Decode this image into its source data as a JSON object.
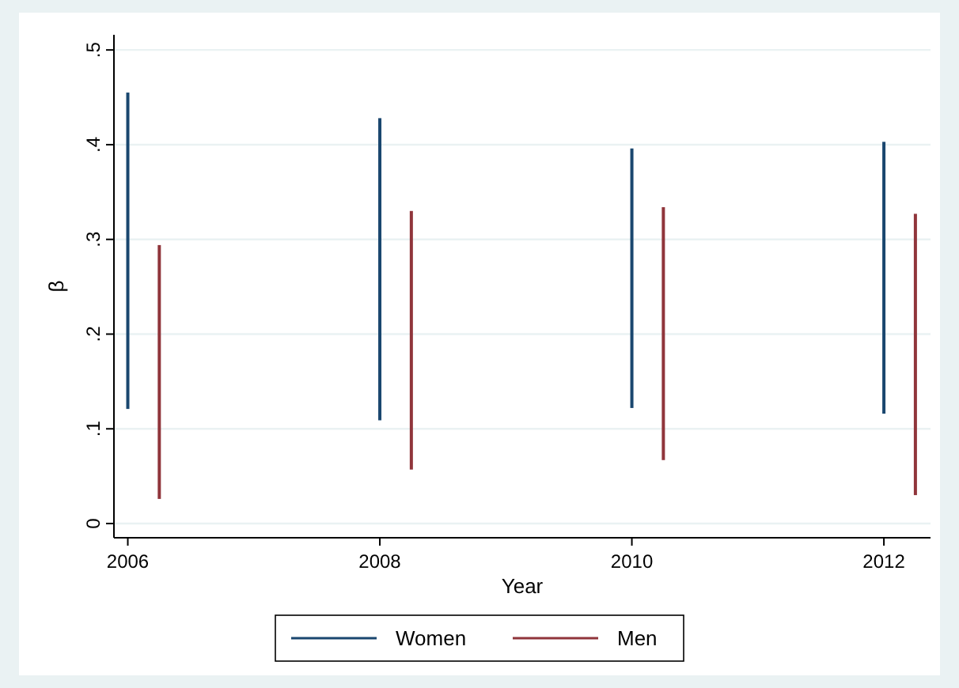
{
  "chart_data": {
    "type": "bar",
    "xlabel": "Year",
    "ylabel": "β",
    "xlim": [
      2005.89,
      2012.37
    ],
    "xticks": [
      2006,
      2008,
      2010,
      2012
    ],
    "ylim": [
      -0.015,
      0.516
    ],
    "yticks": [
      {
        "value": 0,
        "label": "0"
      },
      {
        "value": 0.1,
        "label": ".1"
      },
      {
        "value": 0.2,
        "label": ".2"
      },
      {
        "value": 0.3,
        "label": ".3"
      },
      {
        "value": 0.4,
        "label": ".4"
      },
      {
        "value": 0.5,
        "label": ".5"
      }
    ],
    "grid": "y",
    "legend": "bottom",
    "series": [
      {
        "name": "Women",
        "color": "#1a476f",
        "x": [
          2006,
          2008,
          2010,
          2012
        ],
        "base": [
          0.121,
          0.109,
          0.122,
          0.116
        ],
        "values": [
          0.334,
          0.319,
          0.274,
          0.287
        ]
      },
      {
        "name": "Men",
        "color": "#90353b",
        "x": [
          2006.25,
          2008.25,
          2010.25,
          2012.25
        ],
        "base": [
          0.026,
          0.057,
          0.067,
          0.03
        ],
        "values": [
          0.268,
          0.273,
          0.267,
          0.297
        ]
      }
    ]
  }
}
